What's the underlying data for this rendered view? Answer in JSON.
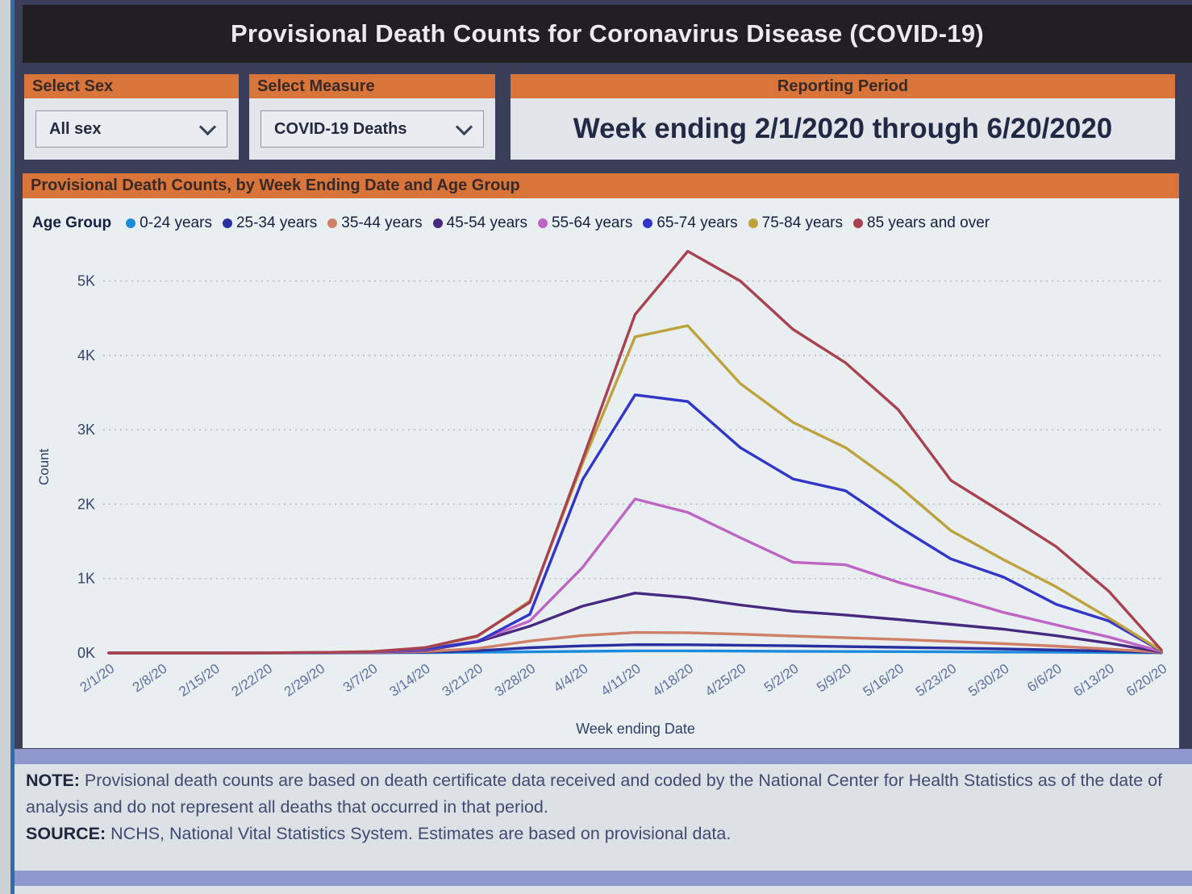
{
  "app": {
    "title": "Provisional Death Counts for Coronavirus Disease (COVID-19)"
  },
  "filters": {
    "sex": {
      "label": "Select Sex",
      "value": "All sex"
    },
    "measure": {
      "label": "Select Measure",
      "value": "COVID-19 Deaths"
    },
    "reporting_period": {
      "label": "Reporting Period",
      "value": "Week ending 2/1/2020 through 6/20/2020"
    }
  },
  "chart_data": {
    "type": "line",
    "title": "Provisional Death Counts, by Week Ending Date and Age Group",
    "legend_title": "Age Group",
    "legend_position": "top",
    "xlabel": "Week ending Date",
    "ylabel": "Count",
    "grid": "horizontal dotted",
    "ylim": [
      0,
      5500
    ],
    "y_tick_values": [
      0,
      1000,
      2000,
      3000,
      4000,
      5000
    ],
    "y_tick_labels": [
      "0K",
      "1K",
      "2K",
      "3K",
      "4K",
      "5K"
    ],
    "categories": [
      "2/1/20",
      "2/8/20",
      "2/15/20",
      "2/22/20",
      "2/29/20",
      "3/7/20",
      "3/14/20",
      "3/21/20",
      "3/28/20",
      "4/4/20",
      "4/11/20",
      "4/18/20",
      "4/25/20",
      "5/2/20",
      "5/9/20",
      "5/16/20",
      "5/23/20",
      "5/30/20",
      "6/6/20",
      "6/13/20",
      "6/20/20"
    ],
    "series": [
      {
        "name": "0-24 years",
        "color": "#1d8bdc",
        "values": [
          0,
          0,
          0,
          0,
          0,
          2,
          5,
          10,
          15,
          22,
          28,
          28,
          25,
          22,
          20,
          18,
          15,
          12,
          10,
          6,
          2
        ]
      },
      {
        "name": "25-34 years",
        "color": "#282f9e",
        "values": [
          0,
          0,
          0,
          0,
          2,
          5,
          10,
          30,
          70,
          95,
          112,
          110,
          104,
          96,
          86,
          76,
          66,
          54,
          40,
          25,
          5
        ]
      },
      {
        "name": "35-44 years",
        "color": "#cf8068",
        "values": [
          0,
          0,
          0,
          0,
          2,
          6,
          18,
          60,
          160,
          235,
          275,
          272,
          252,
          228,
          205,
          182,
          155,
          125,
          92,
          52,
          8
        ]
      },
      {
        "name": "45-54 years",
        "color": "#472a80",
        "values": [
          0,
          0,
          0,
          2,
          3,
          10,
          35,
          150,
          360,
          630,
          805,
          745,
          645,
          560,
          510,
          450,
          385,
          320,
          232,
          132,
          12
        ]
      },
      {
        "name": "55-64 years",
        "color": "#bd64c5",
        "values": [
          0,
          0,
          0,
          2,
          4,
          12,
          45,
          160,
          430,
          1150,
          2070,
          1890,
          1550,
          1220,
          1185,
          950,
          755,
          545,
          378,
          215,
          18
        ]
      },
      {
        "name": "65-74 years",
        "color": "#3136c9",
        "values": [
          0,
          0,
          0,
          2,
          5,
          15,
          55,
          150,
          520,
          2330,
          3470,
          3380,
          2760,
          2340,
          2180,
          1700,
          1265,
          1020,
          655,
          430,
          25
        ]
      },
      {
        "name": "75-84 years",
        "color": "#bda23e",
        "values": [
          0,
          0,
          0,
          2,
          6,
          18,
          70,
          220,
          700,
          2550,
          4250,
          4400,
          3620,
          3100,
          2760,
          2250,
          1645,
          1255,
          890,
          470,
          30
        ]
      },
      {
        "name": "85 years and over",
        "color": "#a84250",
        "values": [
          0,
          0,
          0,
          2,
          6,
          18,
          70,
          230,
          680,
          2600,
          4550,
          5400,
          5000,
          4350,
          3900,
          3270,
          2320,
          1880,
          1430,
          830,
          40
        ]
      }
    ]
  },
  "notes": {
    "note_label": "NOTE:",
    "note_text": "Provisional death counts are based on death certificate data received and coded by the National Center for Health Statistics as of the date of analysis and do not represent all deaths that occurred in that period.",
    "source_label": "SOURCE:",
    "source_text": "NCHS, National Vital Statistics System. Estimates are based on provisional data."
  },
  "colors": {
    "accent": "#d9753b",
    "accent_text": "#3a2a26",
    "app_bg": "#3a3e59",
    "titlebar_bg": "#221f24",
    "titlebar_text": "#eceaf0",
    "panel_bg": "#e2e6eb",
    "chart_bg": "#e9eef0",
    "dropdown_bg": "#e9ecf0",
    "dropdown_border": "#8f98ad",
    "dropdown_text": "#232a40",
    "value_text": "#222944",
    "divider": "#8e98cc",
    "note_bg": "#dce1e6",
    "note_text": "#414b71",
    "note_label": "#20273d",
    "legend_text": "#16203f",
    "grid_color": "#b2b7c1",
    "ytick_color": "#36426b",
    "xtick_color": "#5d6f9e",
    "axis_title_color": "#324066",
    "bezel": "#ccd1d6",
    "bezel_line": "#2e6ea9"
  }
}
